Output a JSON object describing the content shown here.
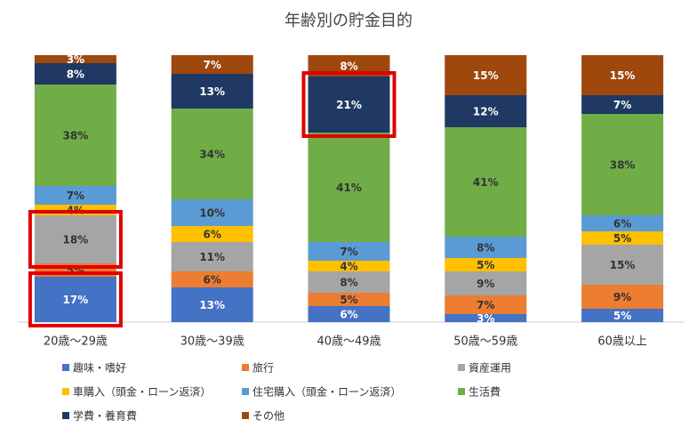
{
  "chart_data": {
    "type": "stacked_bar_percent",
    "title": "年齢別の貯金目的",
    "categories": [
      "20歳〜29歳",
      "30歳〜39歳",
      "40歳〜49歳",
      "50歳〜59歳",
      "60歳以上"
    ],
    "series": [
      {
        "name": "趣味・嗜好",
        "color": "#4472c4",
        "label_color": "#ffffff",
        "values": [
          17,
          13,
          6,
          3,
          5
        ],
        "value_labels": [
          "17%",
          "13%",
          "6%",
          "3%",
          "5%"
        ]
      },
      {
        "name": "旅行",
        "color": "#ed7d31",
        "label_color": "#333333",
        "values": [
          5,
          6,
          5,
          7,
          9
        ],
        "value_labels": [
          "5%",
          "6%",
          "5%",
          "7%",
          "9%"
        ]
      },
      {
        "name": "資産運用",
        "color": "#a5a5a5",
        "label_color": "#333333",
        "values": [
          18,
          11,
          8,
          9,
          15
        ],
        "value_labels": [
          "18%",
          "11%",
          "8%",
          "9%",
          "15%"
        ]
      },
      {
        "name": "車購入（頭金・ローン返済）",
        "color": "#ffc000",
        "label_color": "#333333",
        "values": [
          4,
          6,
          4,
          5,
          5
        ],
        "value_labels": [
          "4%",
          "6%",
          "4%",
          "5%",
          "5%"
        ]
      },
      {
        "name": "住宅購入（頭金・ローン返済）",
        "color": "#5b9bd5",
        "label_color": "#333333",
        "values": [
          7,
          10,
          7,
          8,
          6
        ],
        "value_labels": [
          "7%",
          "10%",
          "7%",
          "8%",
          "6%"
        ]
      },
      {
        "name": "生活費",
        "color": "#70ad47",
        "label_color": "#333333",
        "values": [
          38,
          34,
          41,
          41,
          38
        ],
        "value_labels": [
          "38%",
          "34%",
          "41%",
          "41%",
          "38%"
        ]
      },
      {
        "name": "学費・養育費",
        "color": "#203864",
        "label_color": "#ffffff",
        "values": [
          8,
          13,
          21,
          12,
          7
        ],
        "value_labels": [
          "8%",
          "13%",
          "21%",
          "12%",
          "7%"
        ]
      },
      {
        "name": "その他",
        "color": "#9e480e",
        "label_color": "#ffffff",
        "values": [
          3,
          7,
          8,
          15,
          15
        ],
        "value_labels": [
          "3%",
          "7%",
          "8%",
          "15%",
          "15%"
        ]
      }
    ],
    "highlight_color": "#e00000",
    "highlights": [
      [
        0,
        0
      ],
      [
        2,
        0
      ],
      [
        6,
        2
      ]
    ]
  }
}
